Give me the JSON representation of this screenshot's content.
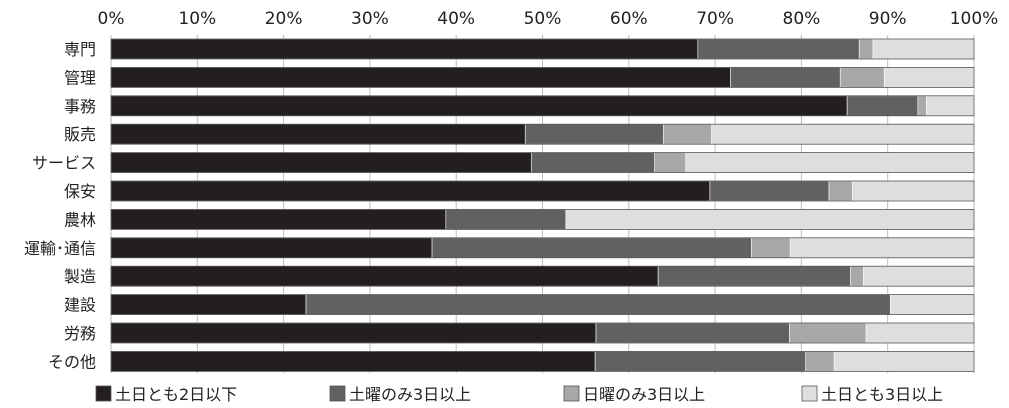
{
  "chart_data": {
    "type": "bar",
    "orientation": "horizontal",
    "stacked": true,
    "xlim": [
      0,
      100
    ],
    "x_ticks": [
      "0%",
      "10%",
      "20%",
      "30%",
      "40%",
      "50%",
      "60%",
      "70%",
      "80%",
      "90%",
      "100%"
    ],
    "x_axis_position": "top",
    "legend_position": "bottom",
    "categories": [
      "専門",
      "管理",
      "事務",
      "販売",
      "サービス",
      "保安",
      "農林",
      "運輸･通信",
      "製造",
      "建設",
      "労務",
      "その他"
    ],
    "series": [
      {
        "name": "土日とも2日以下",
        "color": "#231f20",
        "values": [
          68,
          71.8,
          85.3,
          48.0,
          48.7,
          69.4,
          38.8,
          37.2,
          63.4,
          22.6,
          56.2,
          56.1
        ]
      },
      {
        "name": "土曜のみ3日以上",
        "color": "#616161",
        "values": [
          18.7,
          12.7,
          8.2,
          16.0,
          14.3,
          13.8,
          13.9,
          37.0,
          22.3,
          67.7,
          22.4,
          24.4
        ]
      },
      {
        "name": "日曜のみ3日以上",
        "color": "#a8a8a8",
        "values": [
          1.6,
          5.1,
          1.0,
          5.6,
          3.6,
          2.7,
          0.0,
          4.5,
          1.5,
          0.0,
          8.9,
          3.3
        ]
      },
      {
        "name": "土日とも3日以上",
        "color": "#dedede",
        "values": [
          11.7,
          10.4,
          5.5,
          30.4,
          33.4,
          14.1,
          47.3,
          21.3,
          12.8,
          9.7,
          12.5,
          16.2
        ]
      }
    ]
  }
}
